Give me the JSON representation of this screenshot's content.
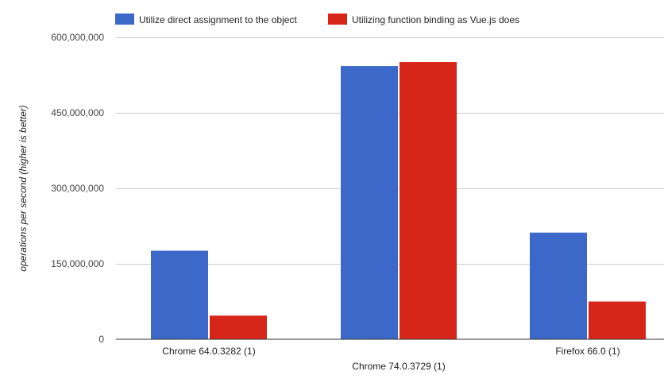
{
  "chart_data": {
    "type": "bar",
    "title": "",
    "xlabel": "",
    "ylabel": "operations per second (higher is better)",
    "categories": [
      "Chrome 64.0.3282 (1)",
      "Chrome 74.0.3729 (1)",
      "Firefox 66.0 (1)"
    ],
    "series": [
      {
        "name": "Utilize direct assignment to the object",
        "color": "#3c69c9",
        "values": [
          176000000,
          543000000,
          212000000
        ]
      },
      {
        "name": "Utilizing function binding as Vue.js does",
        "color": "#d8251a",
        "values": [
          47000000,
          551000000,
          75000000
        ]
      }
    ],
    "ylim": [
      0,
      600000000
    ],
    "yticks": [
      0,
      150000000,
      300000000,
      450000000,
      600000000
    ],
    "ytick_labels": [
      "0",
      "150,000,000",
      "300,000,000",
      "450,000,000",
      "600,000,000"
    ],
    "grid": true,
    "legend_position": "top-left"
  }
}
